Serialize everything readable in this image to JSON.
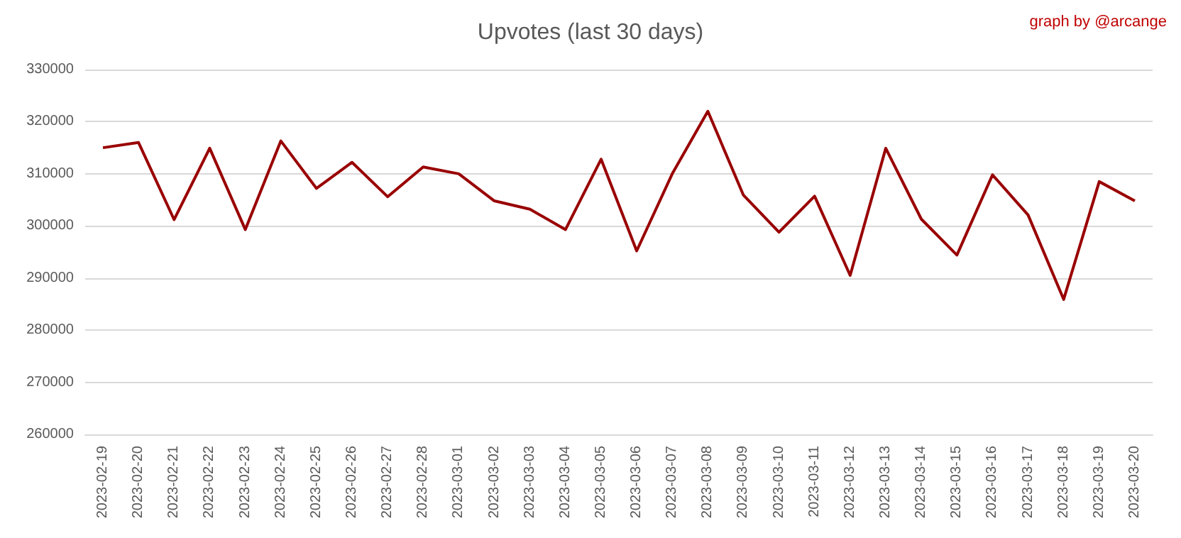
{
  "chart_data": {
    "type": "line",
    "title": "Upvotes (last 30 days)",
    "annotations": [
      "graph by @arcange"
    ],
    "categories": [
      "2023-02-19",
      "2023-02-20",
      "2023-02-21",
      "2023-02-22",
      "2023-02-23",
      "2023-02-24",
      "2023-02-25",
      "2023-02-26",
      "2023-02-27",
      "2023-02-28",
      "2023-03-01",
      "2023-03-02",
      "2023-03-03",
      "2023-03-04",
      "2023-03-05",
      "2023-03-06",
      "2023-03-07",
      "2023-03-08",
      "2023-03-09",
      "2023-03-10",
      "2023-03-11",
      "2023-03-12",
      "2023-03-13",
      "2023-03-14",
      "2023-03-15",
      "2023-03-16",
      "2023-03-17",
      "2023-03-18",
      "2023-03-19",
      "2023-03-20"
    ],
    "series": [
      {
        "color": "#990000",
        "values": [
          315000,
          316000,
          301200,
          314900,
          299300,
          316300,
          307200,
          312200,
          305600,
          311300,
          310000,
          304800,
          303200,
          299300,
          312800,
          295200,
          310000,
          322000,
          305900,
          298800,
          305700,
          290500,
          314900,
          301300,
          294400,
          309800,
          302100,
          285900,
          308500,
          304800
        ]
      }
    ],
    "ylim": [
      260000,
      330000
    ],
    "yticks": [
      260000,
      270000,
      280000,
      290000,
      300000,
      310000,
      320000,
      330000
    ],
    "grid": "y",
    "marker": "none",
    "line_style": "solid"
  }
}
